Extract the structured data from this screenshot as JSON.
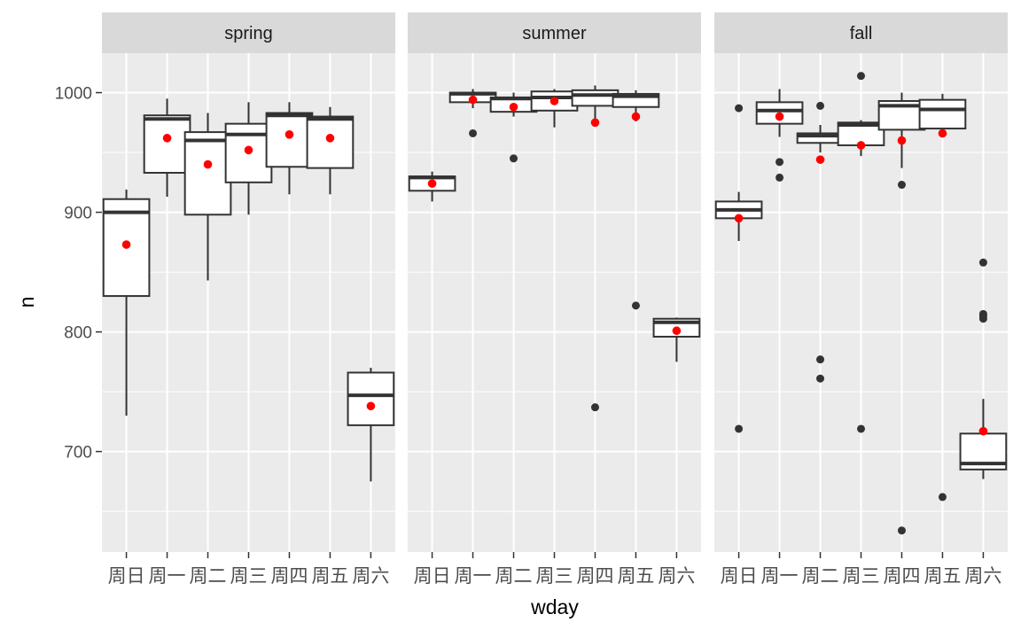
{
  "chart_data": {
    "type": "boxplot",
    "title": "",
    "xlabel": "wday",
    "ylabel": "n",
    "ylim": [
      616,
      1033
    ],
    "yticks": [
      700,
      800,
      900,
      1000
    ],
    "y_minor_ticks": [
      650,
      750,
      850,
      950
    ],
    "grid": true,
    "categories": [
      "周日",
      "周一",
      "周二",
      "周三",
      "周四",
      "周五",
      "周六"
    ],
    "mean_marker_color": "#ff0000",
    "box_fill": "#ffffff",
    "box_line_color": "#333333",
    "panel_background": "#ebebeb",
    "strip_background": "#d9d9d9",
    "panels": [
      {
        "name": "spring",
        "boxes": [
          {
            "category": "周日",
            "lower_whisker": 730,
            "q1": 830,
            "median": 900,
            "q3": 911,
            "upper_whisker": 919,
            "mean": 873,
            "outliers": []
          },
          {
            "category": "周一",
            "lower_whisker": 913,
            "q1": 933,
            "median": 978,
            "q3": 981,
            "upper_whisker": 995,
            "mean": 962,
            "outliers": []
          },
          {
            "category": "周二",
            "lower_whisker": 843,
            "q1": 898,
            "median": 960,
            "q3": 967,
            "upper_whisker": 983,
            "mean": 940,
            "outliers": []
          },
          {
            "category": "周三",
            "lower_whisker": 898,
            "q1": 925,
            "median": 965,
            "q3": 974,
            "upper_whisker": 992,
            "mean": 952,
            "outliers": []
          },
          {
            "category": "周四",
            "lower_whisker": 915,
            "q1": 938,
            "median": 981,
            "q3": 983,
            "upper_whisker": 992,
            "mean": 965,
            "outliers": []
          },
          {
            "category": "周五",
            "lower_whisker": 915,
            "q1": 937,
            "median": 978,
            "q3": 980,
            "upper_whisker": 988,
            "mean": 962,
            "outliers": []
          },
          {
            "category": "周六",
            "lower_whisker": 675,
            "q1": 722,
            "median": 747,
            "q3": 766,
            "upper_whisker": 770,
            "mean": 738,
            "outliers": []
          }
        ]
      },
      {
        "name": "summer",
        "boxes": [
          {
            "category": "周日",
            "lower_whisker": 909,
            "q1": 918,
            "median": 929,
            "q3": 930,
            "upper_whisker": 934,
            "mean": 924,
            "outliers": []
          },
          {
            "category": "周一",
            "lower_whisker": 987,
            "q1": 992,
            "median": 999,
            "q3": 1000,
            "upper_whisker": 1003,
            "mean": 994,
            "outliers": [
              966
            ]
          },
          {
            "category": "周二",
            "lower_whisker": 980,
            "q1": 984,
            "median": 995,
            "q3": 996,
            "upper_whisker": 1000,
            "mean": 988,
            "outliers": [
              945
            ]
          },
          {
            "category": "周三",
            "lower_whisker": 971,
            "q1": 985,
            "median": 996,
            "q3": 1001,
            "upper_whisker": 1003,
            "mean": 993,
            "outliers": []
          },
          {
            "category": "周四",
            "lower_whisker": 977,
            "q1": 989,
            "median": 998,
            "q3": 1002,
            "upper_whisker": 1006,
            "mean": 975,
            "outliers": [
              737
            ]
          },
          {
            "category": "周五",
            "lower_whisker": 976,
            "q1": 988,
            "median": 997,
            "q3": 999,
            "upper_whisker": 1002,
            "mean": 980,
            "outliers": [
              822
            ]
          },
          {
            "category": "周六",
            "lower_whisker": 775,
            "q1": 796,
            "median": 808,
            "q3": 811,
            "upper_whisker": 812,
            "mean": 801,
            "outliers": []
          }
        ]
      },
      {
        "name": "fall",
        "boxes": [
          {
            "category": "周日",
            "lower_whisker": 876,
            "q1": 895,
            "median": 902,
            "q3": 909,
            "upper_whisker": 917,
            "mean": 895,
            "outliers": [
              987,
              719
            ]
          },
          {
            "category": "周一",
            "lower_whisker": 963,
            "q1": 974,
            "median": 985,
            "q3": 992,
            "upper_whisker": 1003,
            "mean": 980,
            "outliers": [
              942,
              929
            ]
          },
          {
            "category": "周二",
            "lower_whisker": 950,
            "q1": 958,
            "median": 964,
            "q3": 966,
            "upper_whisker": 973,
            "mean": 944,
            "outliers": [
              989,
              777,
              761
            ]
          },
          {
            "category": "周三",
            "lower_whisker": 947,
            "q1": 956,
            "median": 973,
            "q3": 975,
            "upper_whisker": 977,
            "mean": 956,
            "outliers": [
              1014,
              719
            ]
          },
          {
            "category": "周四",
            "lower_whisker": 937,
            "q1": 969,
            "median": 989,
            "q3": 993,
            "upper_whisker": 1000,
            "mean": 960,
            "outliers": [
              923,
              634
            ]
          },
          {
            "category": "周五",
            "lower_whisker": 970,
            "q1": 970,
            "median": 986,
            "q3": 994,
            "upper_whisker": 999,
            "mean": 966,
            "outliers": [
              662
            ]
          },
          {
            "category": "周六",
            "lower_whisker": 677,
            "q1": 685,
            "median": 690,
            "q3": 715,
            "upper_whisker": 744,
            "mean": 717,
            "outliers": [
              858,
              815,
              813,
              811
            ]
          }
        ]
      }
    ]
  }
}
